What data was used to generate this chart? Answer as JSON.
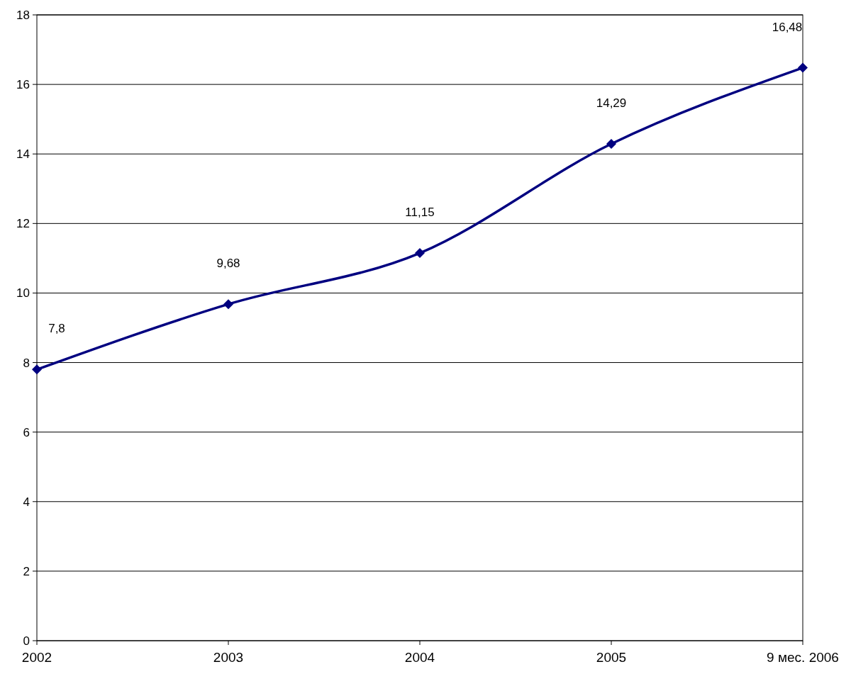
{
  "chart_data": {
    "type": "line",
    "categories": [
      "2002",
      "2003",
      "2004",
      "2005",
      "9 мес. 2006"
    ],
    "series": [
      {
        "color": "#000080",
        "values": [
          7.8,
          9.68,
          11.15,
          14.29,
          16.48
        ],
        "value_labels": [
          "7,8",
          "9,68",
          "11,15",
          "14,29",
          "16,48"
        ]
      }
    ],
    "ylim": [
      0,
      18
    ],
    "yticks": [
      0,
      2,
      4,
      6,
      8,
      10,
      12,
      14,
      16,
      18
    ],
    "grid": "y",
    "marker": "diamond",
    "line_style": "solid"
  }
}
